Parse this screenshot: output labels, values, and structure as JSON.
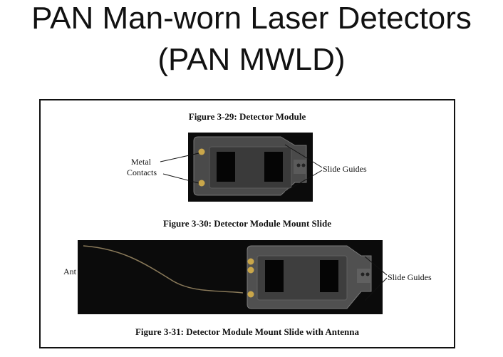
{
  "slide": {
    "title_line1": "PAN Man-worn Laser Detectors",
    "title_line2": "(PAN MWLD)"
  },
  "figure": {
    "fig29_caption": "Figure 3-29: Detector Module",
    "fig30_caption": "Figure 3-30: Detector Module Mount Slide",
    "fig31_caption": "Figure 3-31: Detector Module Mount Slide with Antenna",
    "label_metal": "Metal",
    "label_contacts": "Contacts",
    "label_slide_guides_1": "Slide Guides",
    "label_slide_guides_2": "Slide Guides",
    "label_antenna_partial": "Ant"
  }
}
